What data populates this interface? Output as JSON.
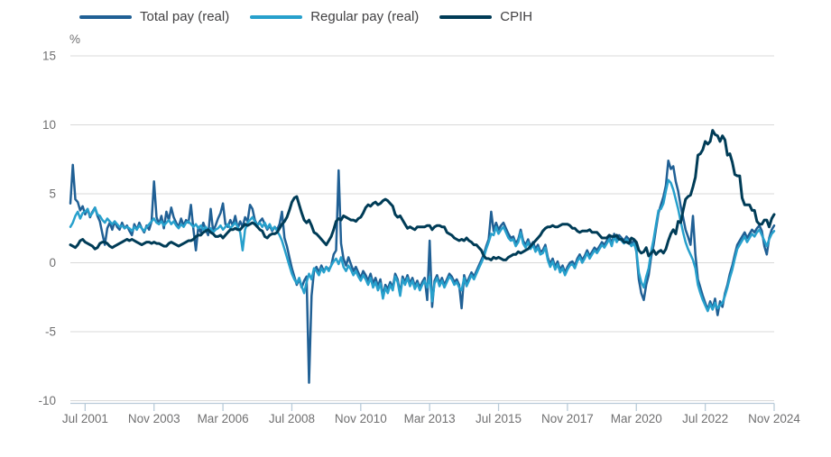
{
  "colors": {
    "background": "#ffffff",
    "grid": "#d9d9d9",
    "axis_line": "#b9cbd9",
    "tick_label": "#707071",
    "legend_text": "#414042"
  },
  "chart_data": {
    "type": "line",
    "title": "",
    "unit": "%",
    "x_start": "Jan 2001",
    "x_end": "Nov 2024",
    "x_frequency": "monthly",
    "grid": true,
    "legend_position": "top",
    "ylim": [
      -10,
      15
    ],
    "y_ticks": [
      15,
      10,
      5,
      0,
      -5,
      -10
    ],
    "x_ticks": [
      {
        "label": "Jul 2001",
        "index": 6
      },
      {
        "label": "Nov 2003",
        "index": 34
      },
      {
        "label": "Mar 2006",
        "index": 62
      },
      {
        "label": "Jul 2008",
        "index": 90
      },
      {
        "label": "Nov 2010",
        "index": 118
      },
      {
        "label": "Mar 2013",
        "index": 146
      },
      {
        "label": "Jul 2015",
        "index": 174
      },
      {
        "label": "Nov 2017",
        "index": 202
      },
      {
        "label": "Mar 2020",
        "index": 230
      },
      {
        "label": "Jul 2022",
        "index": 258
      },
      {
        "label": "Nov 2024",
        "index": 286
      }
    ],
    "series": [
      {
        "name": "Total pay (real)",
        "color": "#206095",
        "values": [
          4.3,
          7.1,
          4.6,
          4.4,
          3.8,
          4.1,
          3.5,
          3.9,
          3.3,
          3.7,
          4.0,
          3.4,
          3.0,
          2.1,
          1.3,
          2.5,
          2.9,
          2.4,
          3.0,
          2.6,
          2.4,
          2.9,
          2.5,
          2.7,
          2.3,
          2.0,
          2.8,
          2.4,
          2.9,
          2.5,
          2.2,
          2.7,
          2.4,
          3.0,
          5.9,
          3.3,
          2.8,
          3.4,
          2.5,
          3.7,
          3.1,
          4.0,
          3.3,
          2.9,
          2.6,
          3.2,
          2.7,
          3.1,
          2.9,
          4.2,
          2.4,
          0.9,
          2.6,
          2.2,
          2.9,
          2.4,
          2.0,
          3.9,
          2.3,
          2.7,
          3.2,
          3.6,
          4.3,
          2.8,
          2.6,
          3.1,
          2.7,
          3.4,
          2.5,
          3.0,
          2.6,
          3.3,
          3.0,
          4.2,
          3.9,
          3.1,
          2.7,
          3.0,
          3.2,
          2.8,
          2.4,
          2.7,
          2.3,
          2.6,
          2.4,
          2.8,
          3.7,
          1.8,
          1.2,
          0.4,
          -0.4,
          -1.0,
          -1.6,
          -1.2,
          -1.8,
          -1.3,
          -1.0,
          -8.7,
          -2.4,
          -0.6,
          -0.3,
          -0.7,
          -0.2,
          -0.6,
          -0.3,
          -0.5,
          -0.2,
          0.6,
          0.9,
          6.7,
          1.4,
          0.3,
          -0.2,
          0.4,
          -0.1,
          -0.6,
          -0.3,
          -0.7,
          -1.1,
          -0.6,
          -0.9,
          -1.3,
          -0.8,
          -1.5,
          -1.1,
          -1.7,
          -1.2,
          -2.4,
          -1.6,
          -1.9,
          -1.4,
          -1.8,
          -0.8,
          -1.2,
          -2.2,
          -1.0,
          -1.4,
          -0.9,
          -1.5,
          -1.1,
          -1.7,
          -1.3,
          -1.8,
          -1.4,
          -1.1,
          -2.7,
          1.6,
          -3.2,
          -1.3,
          -0.9,
          -1.5,
          -1.1,
          -1.6,
          -1.2,
          -0.8,
          -1.0,
          -1.4,
          -1.2,
          -1.6,
          -3.3,
          -0.9,
          -1.5,
          -1.1,
          -0.7,
          -1.0,
          -0.6,
          -0.2,
          0.2,
          0.6,
          1.2,
          1.7,
          3.7,
          2.3,
          2.9,
          2.4,
          2.7,
          2.9,
          2.5,
          2.1,
          1.8,
          1.9,
          1.4,
          1.7,
          2.4,
          1.6,
          1.3,
          1.7,
          1.2,
          1.5,
          1.0,
          1.3,
          0.8,
          0.9,
          1.3,
          0.4,
          -0.1,
          0.3,
          -0.3,
          0.1,
          -0.5,
          -0.2,
          -0.7,
          -0.3,
          0.0,
          0.1,
          -0.2,
          0.3,
          0.6,
          0.2,
          0.5,
          0.9,
          0.5,
          0.8,
          1.1,
          0.9,
          1.2,
          1.5,
          1.3,
          1.6,
          1.9,
          1.4,
          2.1,
          1.7,
          2.0,
          1.8,
          1.6,
          1.9,
          1.7,
          1.4,
          1.6,
          0.8,
          -1.2,
          -2.2,
          -2.7,
          -1.6,
          -0.9,
          0.4,
          1.3,
          2.5,
          3.6,
          4.2,
          4.8,
          5.6,
          7.4,
          6.8,
          7.0,
          5.9,
          5.2,
          4.1,
          3.3,
          2.4,
          1.9,
          1.3,
          3.4,
          0.6,
          -1.2,
          -1.8,
          -2.4,
          -2.9,
          -3.4,
          -2.8,
          -3.3,
          -2.6,
          -3.8,
          -2.8,
          -3.2,
          -2.2,
          -1.6,
          -0.8,
          -0.2,
          0.6,
          1.3,
          1.6,
          1.9,
          2.2,
          1.8,
          2.1,
          2.4,
          2.2,
          2.5,
          2.7,
          2.3,
          1.2,
          0.6,
          1.8,
          2.4,
          2.7
        ]
      },
      {
        "name": "Regular pay (real)",
        "color": "#27A0CC",
        "values": [
          2.6,
          2.9,
          3.4,
          3.7,
          3.2,
          3.6,
          3.7,
          3.9,
          3.4,
          3.6,
          4.0,
          3.5,
          3.4,
          3.1,
          2.9,
          3.2,
          3.0,
          2.8,
          3.0,
          2.8,
          2.6,
          2.7,
          2.5,
          2.6,
          2.5,
          2.3,
          2.6,
          2.4,
          2.7,
          2.5,
          2.3,
          2.6,
          2.8,
          3.0,
          3.2,
          2.9,
          2.8,
          3.0,
          2.7,
          2.9,
          3.1,
          2.8,
          3.0,
          2.7,
          2.5,
          2.8,
          2.6,
          2.9,
          3.0,
          2.8,
          2.6,
          2.8,
          2.5,
          2.7,
          2.4,
          2.6,
          2.3,
          2.5,
          2.2,
          2.4,
          2.5,
          2.7,
          2.4,
          2.6,
          2.8,
          2.5,
          2.7,
          2.9,
          2.6,
          2.2,
          0.9,
          2.4,
          2.9,
          3.1,
          3.3,
          3.0,
          2.7,
          2.9,
          2.6,
          2.9,
          2.5,
          2.8,
          2.4,
          2.6,
          2.3,
          2.0,
          1.6,
          1.0,
          0.4,
          -0.2,
          -0.8,
          -1.2,
          -1.5,
          -1.1,
          -1.7,
          -2.2,
          -1.4,
          -0.8,
          -1.2,
          -0.4,
          -0.6,
          -0.9,
          -0.4,
          -0.7,
          -0.3,
          -0.6,
          -0.2,
          0.1,
          0.3,
          -0.1,
          0.4,
          -0.3,
          -0.6,
          -0.2,
          -0.5,
          -0.9,
          -0.6,
          -1.0,
          -1.3,
          -0.9,
          -1.2,
          -1.6,
          -1.1,
          -1.8,
          -1.4,
          -2.0,
          -1.5,
          -2.6,
          -1.8,
          -2.2,
          -1.6,
          -2.0,
          -1.0,
          -1.4,
          -2.4,
          -1.2,
          -1.6,
          -1.1,
          -1.7,
          -1.3,
          -1.9,
          -1.5,
          -2.0,
          -1.6,
          -1.3,
          -1.8,
          -1.0,
          -2.8,
          -1.5,
          -1.1,
          -1.7,
          -1.3,
          -1.8,
          -1.4,
          -1.0,
          -1.2,
          -1.6,
          -1.4,
          -1.8,
          -2.0,
          -1.1,
          -1.7,
          -1.3,
          -0.9,
          -1.2,
          -0.8,
          -0.4,
          0.0,
          0.4,
          1.0,
          1.5,
          2.1,
          2.0,
          2.6,
          2.1,
          2.4,
          2.6,
          2.2,
          1.8,
          1.6,
          1.7,
          1.2,
          1.5,
          2.2,
          1.4,
          1.1,
          1.5,
          1.0,
          1.3,
          0.8,
          1.1,
          0.6,
          0.7,
          1.1,
          0.2,
          -0.3,
          0.1,
          -0.5,
          -0.1,
          -0.7,
          -0.4,
          -0.9,
          -0.5,
          -0.2,
          -0.1,
          -0.4,
          0.1,
          0.4,
          0.0,
          0.3,
          0.7,
          0.3,
          0.6,
          0.9,
          0.7,
          1.0,
          1.3,
          1.1,
          1.4,
          1.7,
          1.2,
          1.9,
          1.5,
          1.8,
          1.6,
          1.4,
          1.7,
          1.5,
          1.2,
          1.4,
          0.9,
          -0.7,
          -1.4,
          -1.8,
          -1.0,
          -0.4,
          0.8,
          1.7,
          2.8,
          3.8,
          3.9,
          4.3,
          5.2,
          6.0,
          5.8,
          5.3,
          4.6,
          3.9,
          3.0,
          2.2,
          1.5,
          1.0,
          0.6,
          0.2,
          -0.4,
          -1.6,
          -2.2,
          -2.7,
          -3.1,
          -3.5,
          -3.0,
          -3.4,
          -2.9,
          -3.3,
          -3.1,
          -2.9,
          -2.4,
          -1.8,
          -1.1,
          -0.5,
          0.3,
          1.0,
          1.3,
          1.6,
          1.9,
          1.5,
          1.8,
          2.1,
          1.9,
          2.2,
          2.4,
          2.0,
          1.6,
          1.2,
          1.7,
          2.1,
          2.3
        ]
      },
      {
        "name": "CPIH",
        "color": "#003C57",
        "values": [
          1.3,
          1.2,
          1.1,
          1.3,
          1.6,
          1.7,
          1.5,
          1.4,
          1.3,
          1.2,
          1.0,
          1.1,
          1.4,
          1.5,
          1.5,
          1.4,
          1.2,
          1.1,
          1.2,
          1.3,
          1.4,
          1.5,
          1.6,
          1.7,
          1.6,
          1.7,
          1.6,
          1.5,
          1.4,
          1.3,
          1.4,
          1.5,
          1.5,
          1.4,
          1.5,
          1.4,
          1.4,
          1.3,
          1.2,
          1.2,
          1.4,
          1.5,
          1.4,
          1.3,
          1.2,
          1.3,
          1.4,
          1.5,
          1.6,
          1.6,
          1.7,
          1.9,
          2.0,
          2.0,
          2.2,
          2.3,
          2.4,
          2.2,
          2.1,
          1.9,
          1.9,
          2.0,
          1.8,
          2.0,
          2.2,
          2.4,
          2.4,
          2.5,
          2.4,
          2.4,
          2.6,
          2.8,
          2.7,
          2.8,
          2.9,
          2.8,
          2.6,
          2.4,
          2.3,
          1.9,
          1.8,
          2.0,
          2.1,
          2.1,
          2.2,
          2.5,
          2.8,
          3.0,
          3.3,
          3.8,
          4.4,
          4.7,
          4.8,
          4.2,
          3.6,
          3.1,
          2.9,
          3.1,
          2.7,
          2.2,
          2.1,
          1.9,
          1.7,
          1.5,
          1.3,
          1.6,
          1.9,
          2.4,
          3.0,
          3.2,
          3.1,
          3.4,
          3.3,
          3.2,
          3.1,
          3.1,
          3.0,
          3.2,
          3.3,
          3.6,
          4.0,
          4.2,
          4.1,
          4.3,
          4.4,
          4.2,
          4.3,
          4.5,
          4.6,
          4.5,
          4.3,
          4.1,
          3.5,
          3.3,
          3.4,
          3.1,
          2.8,
          2.5,
          2.6,
          2.5,
          2.4,
          2.6,
          2.6,
          2.6,
          2.6,
          2.7,
          2.7,
          2.4,
          2.6,
          2.7,
          2.7,
          2.6,
          2.6,
          2.2,
          2.1,
          2.0,
          1.8,
          1.7,
          1.6,
          1.7,
          1.6,
          1.8,
          1.6,
          1.5,
          1.3,
          1.3,
          1.1,
          0.9,
          0.5,
          0.3,
          0.3,
          0.2,
          0.4,
          0.3,
          0.4,
          0.3,
          0.2,
          0.2,
          0.4,
          0.5,
          0.6,
          0.6,
          0.8,
          0.7,
          0.8,
          0.9,
          1.0,
          1.2,
          1.4,
          1.6,
          1.8,
          2.0,
          2.3,
          2.5,
          2.6,
          2.6,
          2.7,
          2.6,
          2.6,
          2.7,
          2.8,
          2.8,
          2.8,
          2.7,
          2.5,
          2.5,
          2.3,
          2.2,
          2.3,
          2.3,
          2.3,
          2.4,
          2.2,
          2.2,
          2.2,
          2.0,
          1.8,
          1.8,
          1.8,
          2.0,
          1.9,
          1.9,
          2.0,
          1.7,
          1.7,
          1.5,
          1.5,
          1.4,
          1.8,
          1.7,
          1.5,
          0.9,
          0.7,
          0.8,
          1.1,
          0.5,
          0.7,
          0.9,
          0.6,
          0.8,
          0.9,
          0.7,
          1.0,
          1.6,
          2.1,
          2.4,
          2.1,
          3.0,
          2.9,
          3.8,
          4.6,
          4.8,
          4.9,
          5.5,
          6.2,
          7.8,
          7.9,
          8.2,
          8.8,
          8.6,
          8.8,
          9.6,
          9.3,
          9.2,
          8.8,
          9.2,
          8.9,
          7.8,
          7.9,
          7.3,
          6.4,
          6.3,
          6.3,
          4.7,
          4.2,
          4.2,
          4.2,
          3.8,
          3.8,
          3.0,
          2.8,
          2.8,
          3.1,
          3.1,
          2.6,
          3.2,
          3.5
        ]
      }
    ]
  }
}
